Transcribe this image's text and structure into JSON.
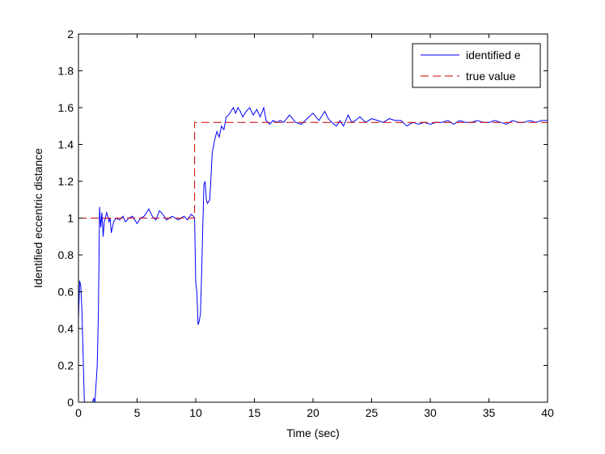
{
  "chart_data": {
    "type": "line",
    "xlabel": "Time (sec)",
    "ylabel": "Identified eccentric distance",
    "xlim": [
      0,
      40
    ],
    "ylim": [
      0,
      2
    ],
    "xticks": [
      "0",
      "5",
      "10",
      "15",
      "20",
      "25",
      "30",
      "35",
      "40"
    ],
    "yticks": [
      "0",
      "0.2",
      "0.4",
      "0.6",
      "0.8",
      "1",
      "1.2",
      "1.4",
      "1.6",
      "1.8",
      "2"
    ],
    "grid": false,
    "legend_position": "top-right",
    "series": [
      {
        "name": "identified e",
        "color": "#0000ff",
        "style": "solid",
        "x": [
          0,
          0.1,
          0.2,
          0.3,
          0.4,
          0.5,
          0.6,
          0.65,
          0.7,
          1.2,
          1.3,
          1.4,
          1.5,
          1.6,
          1.7,
          1.8,
          1.9,
          2.0,
          2.1,
          2.2,
          2.3,
          2.4,
          2.5,
          2.6,
          2.7,
          2.8,
          3.0,
          3.2,
          3.5,
          3.8,
          4.0,
          4.3,
          4.6,
          5.0,
          5.3,
          5.6,
          6.0,
          6.3,
          6.6,
          6.9,
          7.2,
          7.5,
          8.0,
          8.5,
          9.0,
          9.3,
          9.6,
          9.8,
          9.9,
          10.0,
          10.1,
          10.2,
          10.3,
          10.4,
          10.5,
          10.6,
          10.7,
          10.8,
          10.9,
          11.0,
          11.2,
          11.4,
          11.6,
          11.8,
          12.0,
          12.2,
          12.4,
          12.6,
          12.8,
          13.0,
          13.2,
          13.4,
          13.6,
          13.8,
          14.0,
          14.3,
          14.6,
          14.9,
          15.2,
          15.5,
          15.8,
          16.0,
          16.3,
          16.6,
          16.9,
          17.2,
          17.5,
          18.0,
          18.5,
          19.0,
          19.5,
          20.0,
          20.5,
          21.0,
          21.3,
          21.6,
          22.0,
          22.3,
          22.6,
          23.0,
          23.3,
          23.6,
          24.0,
          24.5,
          25.0,
          25.5,
          26.0,
          26.5,
          27.0,
          27.5,
          28.0,
          28.5,
          29.0,
          29.5,
          30.0,
          30.5,
          31.0,
          31.5,
          32.0,
          32.5,
          33.0,
          33.5,
          34.0,
          34.5,
          35.0,
          35.5,
          36.0,
          36.5,
          37.0,
          37.5,
          38.0,
          38.5,
          39.0,
          39.5,
          40.0
        ],
        "y": [
          0.45,
          0.66,
          0.63,
          0.5,
          0.25,
          0.0,
          0.0,
          0.0,
          0.0,
          0.0,
          0.02,
          0.0,
          0.1,
          0.2,
          0.5,
          1.06,
          0.95,
          1.03,
          0.9,
          0.98,
          1.0,
          1.03,
          1.01,
          0.98,
          1.0,
          0.92,
          0.98,
          1.0,
          0.99,
          1.01,
          0.98,
          1.0,
          1.01,
          0.97,
          1.0,
          1.01,
          1.05,
          1.01,
          0.99,
          1.04,
          1.02,
          0.99,
          1.01,
          0.99,
          1.01,
          0.99,
          1.02,
          1.01,
          1.0,
          0.65,
          0.6,
          0.42,
          0.44,
          0.48,
          0.7,
          0.95,
          1.18,
          1.2,
          1.1,
          1.08,
          1.1,
          1.35,
          1.42,
          1.47,
          1.44,
          1.5,
          1.48,
          1.55,
          1.56,
          1.58,
          1.6,
          1.57,
          1.6,
          1.58,
          1.55,
          1.58,
          1.6,
          1.56,
          1.59,
          1.55,
          1.6,
          1.53,
          1.51,
          1.53,
          1.52,
          1.53,
          1.52,
          1.56,
          1.52,
          1.51,
          1.54,
          1.57,
          1.53,
          1.58,
          1.54,
          1.52,
          1.5,
          1.53,
          1.5,
          1.56,
          1.52,
          1.53,
          1.55,
          1.52,
          1.54,
          1.53,
          1.52,
          1.54,
          1.53,
          1.53,
          1.5,
          1.52,
          1.51,
          1.52,
          1.51,
          1.52,
          1.52,
          1.53,
          1.51,
          1.53,
          1.52,
          1.52,
          1.53,
          1.52,
          1.52,
          1.53,
          1.52,
          1.51,
          1.53,
          1.52,
          1.52,
          1.53,
          1.52,
          1.53,
          1.53
        ]
      },
      {
        "name": "true value",
        "color": "#cc0000",
        "style": "dashed",
        "x": [
          0,
          9.9,
          9.9,
          40
        ],
        "y": [
          1.0,
          1.0,
          1.52,
          1.52
        ]
      }
    ]
  }
}
